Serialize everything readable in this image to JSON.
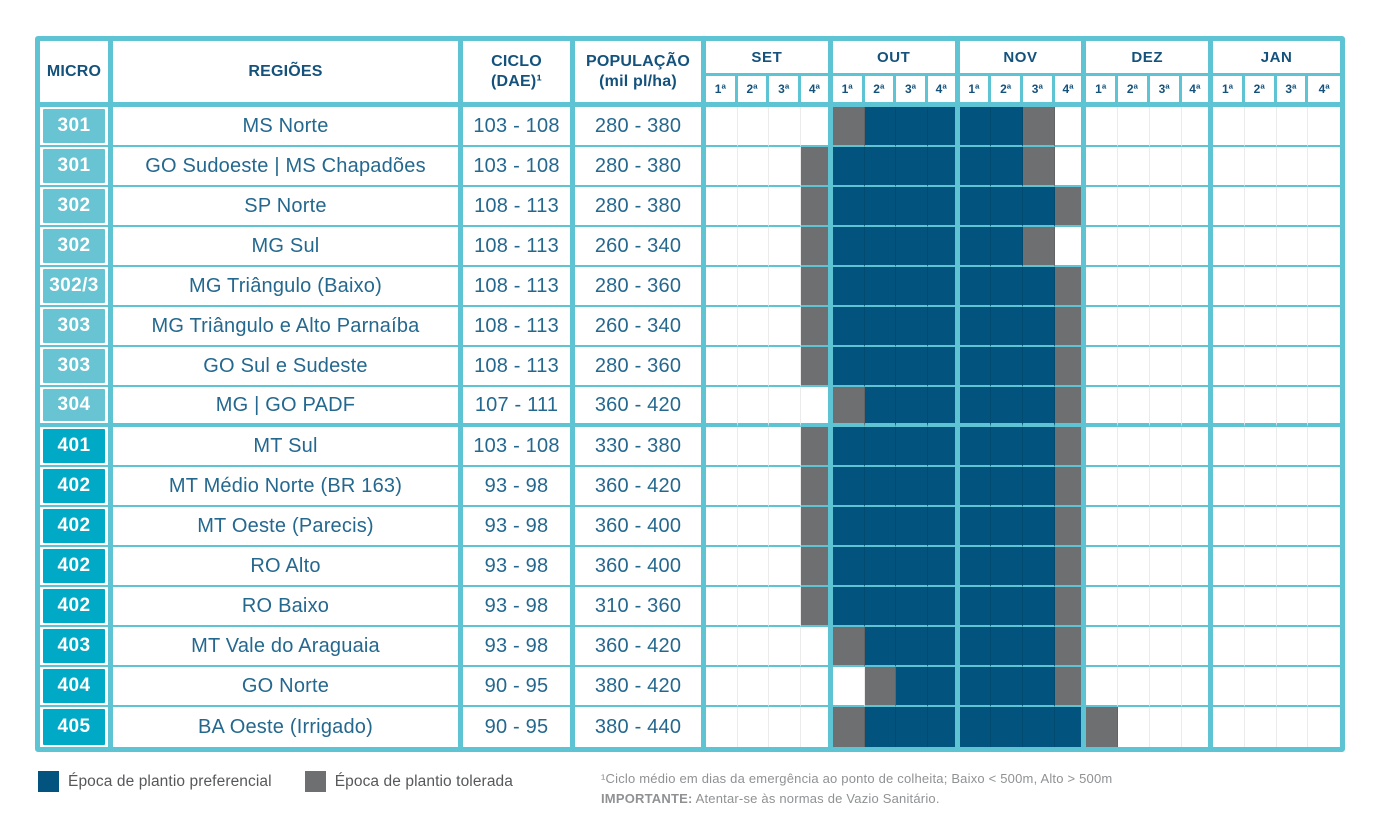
{
  "table": {
    "columns": {
      "micro": "MICRO",
      "regioes": "REGIÕES",
      "ciclo_lines": [
        "CICLO",
        "(DAE)¹"
      ],
      "populacao_lines": [
        "POPULAÇÃO",
        "(mil pl/ha)"
      ]
    },
    "months": [
      "SET",
      "OUT",
      "NOV",
      "DEZ",
      "JAN"
    ],
    "weeks": [
      "1ª",
      "2ª",
      "3ª",
      "4ª"
    ],
    "schedule_codes": {
      "0": "none",
      "1": "preferencial",
      "2": "tolerada"
    },
    "rows": [
      {
        "micro": "301",
        "series": "300",
        "regiao": "MS Norte",
        "ciclo": "103 - 108",
        "populacao": "280 - 380",
        "schedule": [
          0,
          0,
          0,
          0,
          2,
          1,
          1,
          1,
          1,
          1,
          2,
          0,
          0,
          0,
          0,
          0,
          0,
          0,
          0,
          0
        ]
      },
      {
        "micro": "301",
        "series": "300",
        "regiao": "GO Sudoeste | MS Chapadões",
        "ciclo": "103 - 108",
        "populacao": "280 - 380",
        "schedule": [
          0,
          0,
          0,
          2,
          1,
          1,
          1,
          1,
          1,
          1,
          2,
          0,
          0,
          0,
          0,
          0,
          0,
          0,
          0,
          0
        ]
      },
      {
        "micro": "302",
        "series": "300",
        "regiao": "SP Norte",
        "ciclo": "108 - 113",
        "populacao": "280 - 380",
        "schedule": [
          0,
          0,
          0,
          2,
          1,
          1,
          1,
          1,
          1,
          1,
          1,
          2,
          0,
          0,
          0,
          0,
          0,
          0,
          0,
          0
        ]
      },
      {
        "micro": "302",
        "series": "300",
        "regiao": "MG Sul",
        "ciclo": "108 - 113",
        "populacao": "260 - 340",
        "schedule": [
          0,
          0,
          0,
          2,
          1,
          1,
          1,
          1,
          1,
          1,
          2,
          0,
          0,
          0,
          0,
          0,
          0,
          0,
          0,
          0
        ]
      },
      {
        "micro": "302/3",
        "series": "300",
        "regiao": "MG Triângulo (Baixo)",
        "ciclo": "108 - 113",
        "populacao": "280 - 360",
        "schedule": [
          0,
          0,
          0,
          2,
          1,
          1,
          1,
          1,
          1,
          1,
          1,
          2,
          0,
          0,
          0,
          0,
          0,
          0,
          0,
          0
        ]
      },
      {
        "micro": "303",
        "series": "300",
        "regiao": "MG Triângulo e Alto Parnaíba",
        "ciclo": "108 - 113",
        "populacao": "260 - 340",
        "schedule": [
          0,
          0,
          0,
          2,
          1,
          1,
          1,
          1,
          1,
          1,
          1,
          2,
          0,
          0,
          0,
          0,
          0,
          0,
          0,
          0
        ]
      },
      {
        "micro": "303",
        "series": "300",
        "regiao": "GO Sul e Sudeste",
        "ciclo": "108 - 113",
        "populacao": "280 - 360",
        "schedule": [
          0,
          0,
          0,
          2,
          1,
          1,
          1,
          1,
          1,
          1,
          1,
          2,
          0,
          0,
          0,
          0,
          0,
          0,
          0,
          0
        ]
      },
      {
        "micro": "304",
        "series": "300",
        "regiao": "MG | GO PADF",
        "ciclo": "107 - 111",
        "populacao": "360 - 420",
        "schedule": [
          0,
          0,
          0,
          0,
          2,
          1,
          1,
          1,
          1,
          1,
          1,
          2,
          0,
          0,
          0,
          0,
          0,
          0,
          0,
          0
        ]
      },
      {
        "micro": "401",
        "series": "400",
        "regiao": "MT Sul",
        "ciclo": "103 - 108",
        "populacao": "330 - 380",
        "schedule": [
          0,
          0,
          0,
          2,
          1,
          1,
          1,
          1,
          1,
          1,
          1,
          2,
          0,
          0,
          0,
          0,
          0,
          0,
          0,
          0
        ]
      },
      {
        "micro": "402",
        "series": "400",
        "regiao": "MT Médio Norte (BR 163)",
        "ciclo": "93 - 98",
        "populacao": "360 - 420",
        "schedule": [
          0,
          0,
          0,
          2,
          1,
          1,
          1,
          1,
          1,
          1,
          1,
          2,
          0,
          0,
          0,
          0,
          0,
          0,
          0,
          0
        ]
      },
      {
        "micro": "402",
        "series": "400",
        "regiao": "MT Oeste (Parecis)",
        "ciclo": "93 - 98",
        "populacao": "360 - 400",
        "schedule": [
          0,
          0,
          0,
          2,
          1,
          1,
          1,
          1,
          1,
          1,
          1,
          2,
          0,
          0,
          0,
          0,
          0,
          0,
          0,
          0
        ]
      },
      {
        "micro": "402",
        "series": "400",
        "regiao": "RO Alto",
        "ciclo": "93 - 98",
        "populacao": "360 - 400",
        "schedule": [
          0,
          0,
          0,
          2,
          1,
          1,
          1,
          1,
          1,
          1,
          1,
          2,
          0,
          0,
          0,
          0,
          0,
          0,
          0,
          0
        ]
      },
      {
        "micro": "402",
        "series": "400",
        "regiao": "RO Baixo",
        "ciclo": "93 - 98",
        "populacao": "310 - 360",
        "schedule": [
          0,
          0,
          0,
          2,
          1,
          1,
          1,
          1,
          1,
          1,
          1,
          2,
          0,
          0,
          0,
          0,
          0,
          0,
          0,
          0
        ]
      },
      {
        "micro": "403",
        "series": "400",
        "regiao": "MT Vale do Araguaia",
        "ciclo": "93 - 98",
        "populacao": "360 - 420",
        "schedule": [
          0,
          0,
          0,
          0,
          2,
          1,
          1,
          1,
          1,
          1,
          1,
          2,
          0,
          0,
          0,
          0,
          0,
          0,
          0,
          0
        ]
      },
      {
        "micro": "404",
        "series": "400",
        "regiao": "GO Norte",
        "ciclo": "90 - 95",
        "populacao": "380 - 420",
        "schedule": [
          0,
          0,
          0,
          0,
          0,
          2,
          1,
          1,
          1,
          1,
          1,
          2,
          0,
          0,
          0,
          0,
          0,
          0,
          0,
          0
        ]
      },
      {
        "micro": "405",
        "series": "400",
        "regiao": "BA Oeste (Irrigado)",
        "ciclo": "90 - 95",
        "populacao": "380 - 440",
        "schedule": [
          0,
          0,
          0,
          0,
          2,
          1,
          1,
          1,
          1,
          1,
          1,
          1,
          2,
          0,
          0,
          0,
          0,
          0,
          0,
          0
        ]
      }
    ]
  },
  "legend": {
    "items": [
      {
        "label": "Época de plantio preferencial",
        "type": "preferencial",
        "color": "#02537d"
      },
      {
        "label": "Época de plantio tolerada",
        "type": "tolerada",
        "color": "#6e6f71"
      }
    ]
  },
  "footnotes": {
    "line1": "¹Ciclo médio em dias da emergência ao ponto de colheita; Baixo < 500m, Alto > 500m",
    "line2_strong": "IMPORTANTE:",
    "line2_rest": " Atentar-se às normas de Vazio Sanitário."
  },
  "colors": {
    "border_teal": "#5ec3d3",
    "preferencial_fill": "#02537d",
    "tolerada_fill": "#6e6f71",
    "micro_300_badge": "#68c4d2",
    "micro_400_badge": "#00a9c6",
    "header_text": "#14527c",
    "data_text": "#24688f"
  }
}
